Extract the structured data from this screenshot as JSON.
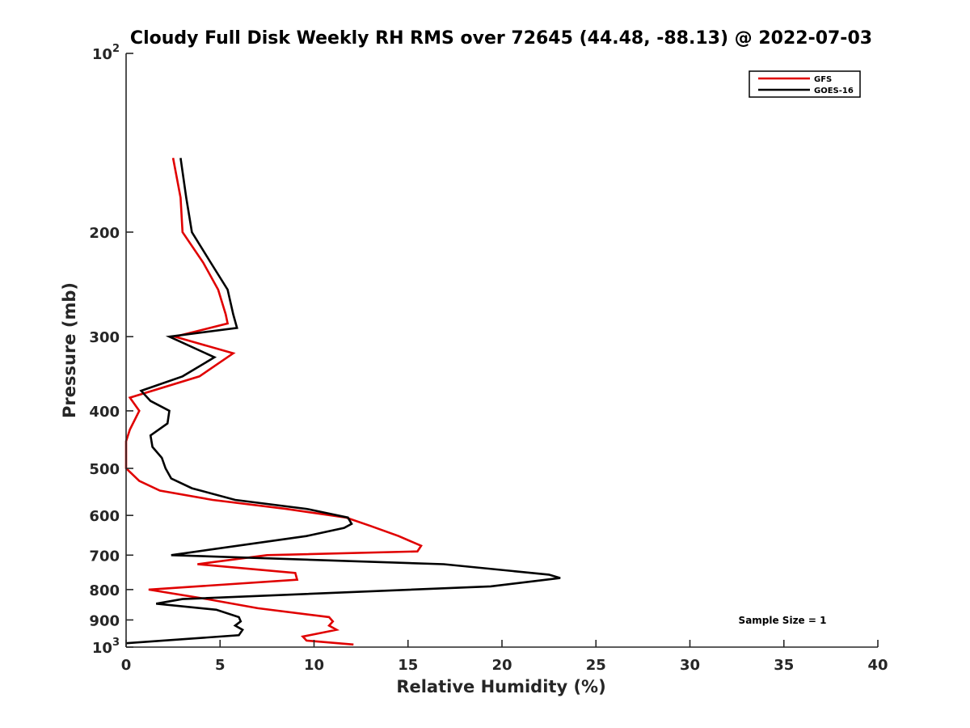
{
  "chart_data": {
    "type": "line",
    "title": "Cloudy Full Disk Weekly RH RMS over 72645 (44.48, -88.13) @ 2022-07-03",
    "xlabel": "Relative Humidity (%)",
    "ylabel": "Pressure (mb)",
    "xlim": [
      0,
      40
    ],
    "ylim": [
      100,
      1000
    ],
    "y_scale": "log",
    "y_reversed": true,
    "grid": false,
    "legend_position": "top-right",
    "x_ticks": [
      0,
      5,
      10,
      15,
      20,
      25,
      30,
      35,
      40
    ],
    "x_tick_labels": [
      "0",
      "5",
      "10",
      "15",
      "20",
      "25",
      "30",
      "35",
      "40"
    ],
    "y_ticks": [
      100,
      200,
      300,
      400,
      500,
      600,
      700,
      800,
      900,
      1000
    ],
    "y_tick_labels": [
      {
        "base": "10",
        "exp": "2"
      },
      {
        "base": "200",
        "exp": ""
      },
      {
        "base": "300",
        "exp": ""
      },
      {
        "base": "400",
        "exp": ""
      },
      {
        "base": "500",
        "exp": ""
      },
      {
        "base": "600",
        "exp": ""
      },
      {
        "base": "700",
        "exp": ""
      },
      {
        "base": "800",
        "exp": ""
      },
      {
        "base": "900",
        "exp": ""
      },
      {
        "base": "10",
        "exp": "3"
      }
    ],
    "annotation": "Sample Size = 1",
    "series": [
      {
        "name": "GFS",
        "color": "#e00000",
        "points": [
          [
            2.5,
            150
          ],
          [
            2.9,
            175
          ],
          [
            3.0,
            200
          ],
          [
            4.1,
            225
          ],
          [
            4.9,
            250
          ],
          [
            5.3,
            275
          ],
          [
            5.4,
            285
          ],
          [
            2.6,
            300
          ],
          [
            5.7,
            320
          ],
          [
            3.9,
            350
          ],
          [
            0.2,
            380
          ],
          [
            0.7,
            400
          ],
          [
            0.2,
            430
          ],
          [
            0.0,
            450
          ],
          [
            0.0,
            475
          ],
          [
            0.0,
            500
          ],
          [
            0.7,
            525
          ],
          [
            1.8,
            545
          ],
          [
            4.6,
            565
          ],
          [
            8.5,
            585
          ],
          [
            11.7,
            605
          ],
          [
            13.0,
            625
          ],
          [
            14.5,
            650
          ],
          [
            15.7,
            675
          ],
          [
            15.5,
            690
          ],
          [
            7.5,
            700
          ],
          [
            3.8,
            725
          ],
          [
            9.0,
            750
          ],
          [
            9.1,
            770
          ],
          [
            1.2,
            800
          ],
          [
            4.3,
            830
          ],
          [
            7.0,
            860
          ],
          [
            10.8,
            890
          ],
          [
            11.0,
            905
          ],
          [
            10.8,
            920
          ],
          [
            11.2,
            935
          ],
          [
            9.4,
            960
          ],
          [
            9.6,
            975
          ],
          [
            12.1,
            990
          ]
        ]
      },
      {
        "name": "GOES-16",
        "color": "#000000",
        "points": [
          [
            2.9,
            150
          ],
          [
            3.2,
            175
          ],
          [
            3.5,
            200
          ],
          [
            4.5,
            225
          ],
          [
            5.4,
            250
          ],
          [
            5.7,
            275
          ],
          [
            5.9,
            290
          ],
          [
            2.3,
            300
          ],
          [
            4.7,
            325
          ],
          [
            3.0,
            350
          ],
          [
            0.8,
            370
          ],
          [
            1.3,
            385
          ],
          [
            2.3,
            400
          ],
          [
            2.2,
            420
          ],
          [
            1.3,
            440
          ],
          [
            1.4,
            460
          ],
          [
            1.9,
            480
          ],
          [
            2.1,
            500
          ],
          [
            2.4,
            520
          ],
          [
            3.5,
            540
          ],
          [
            5.8,
            565
          ],
          [
            9.6,
            585
          ],
          [
            11.8,
            605
          ],
          [
            12.0,
            620
          ],
          [
            11.6,
            630
          ],
          [
            9.6,
            650
          ],
          [
            2.4,
            700
          ],
          [
            16.9,
            725
          ],
          [
            22.5,
            755
          ],
          [
            23.1,
            765
          ],
          [
            19.4,
            790
          ],
          [
            3.0,
            830
          ],
          [
            1.6,
            845
          ],
          [
            4.8,
            865
          ],
          [
            6.0,
            890
          ],
          [
            6.1,
            905
          ],
          [
            5.8,
            920
          ],
          [
            6.2,
            935
          ],
          [
            6.0,
            955
          ],
          [
            0.0,
            985
          ]
        ]
      }
    ]
  }
}
